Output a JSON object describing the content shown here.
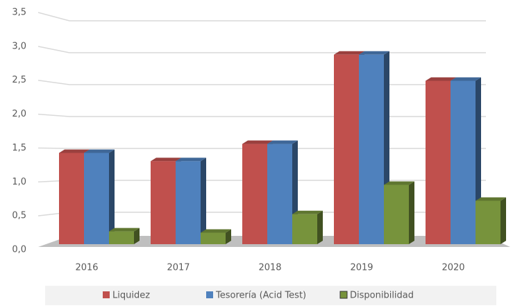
{
  "chart_data": {
    "type": "bar3d",
    "categories": [
      "2016",
      "2017",
      "2018",
      "2019",
      "2020"
    ],
    "series": [
      {
        "name": "Liquidez",
        "color": "#c0504d",
        "values": [
          1.43,
          1.3,
          1.57,
          2.97,
          2.56
        ]
      },
      {
        "name": "Tesorería (Acid Test)",
        "color": "#4f81bd",
        "values": [
          1.43,
          1.3,
          1.57,
          2.97,
          2.56
        ]
      },
      {
        "name": "Disponibilidad",
        "color": "#77933c",
        "values": [
          0.2,
          0.18,
          0.47,
          0.93,
          0.68
        ]
      }
    ],
    "ylim": [
      0,
      3.5
    ],
    "yticks": [
      {
        "value": 0,
        "label": "0,0"
      },
      {
        "value": 0.5,
        "label": "0,5"
      },
      {
        "value": 1,
        "label": "1,0"
      },
      {
        "value": 1.5,
        "label": "1,5"
      },
      {
        "value": 2,
        "label": "2,0"
      },
      {
        "value": 2.5,
        "label": "2,5"
      },
      {
        "value": 3,
        "label": "3,0"
      },
      {
        "value": 3.5,
        "label": "3,5"
      }
    ],
    "grid": true,
    "legend": "bottom"
  }
}
